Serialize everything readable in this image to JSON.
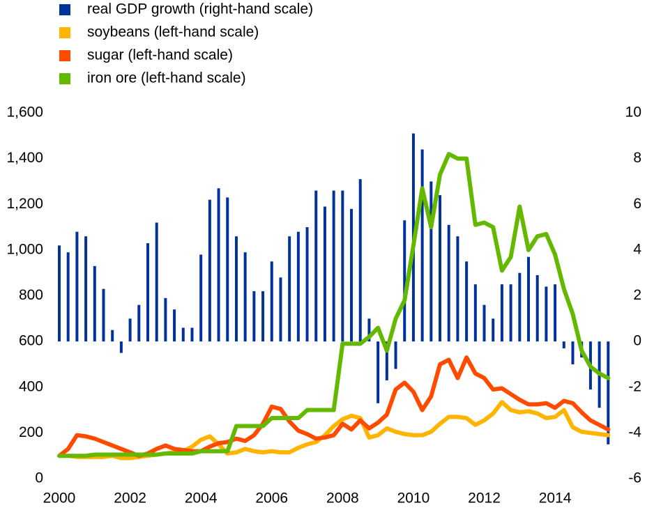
{
  "chart_data": {
    "type": "combo",
    "x": [
      2000,
      2000.25,
      2000.5,
      2000.75,
      2001,
      2001.25,
      2001.5,
      2001.75,
      2002,
      2002.25,
      2002.5,
      2002.75,
      2003,
      2003.25,
      2003.5,
      2003.75,
      2004,
      2004.25,
      2004.5,
      2004.75,
      2005,
      2005.25,
      2005.5,
      2005.75,
      2006,
      2006.25,
      2006.5,
      2006.75,
      2007,
      2007.25,
      2007.5,
      2007.75,
      2008,
      2008.25,
      2008.5,
      2008.75,
      2009,
      2009.25,
      2009.5,
      2009.75,
      2010,
      2010.25,
      2010.5,
      2010.75,
      2011,
      2011.25,
      2011.5,
      2011.75,
      2012,
      2012.25,
      2012.5,
      2012.75,
      2013,
      2013.25,
      2013.5,
      2013.75,
      2014,
      2014.25,
      2014.5,
      2014.75,
      2015,
      2015.25,
      2015.5
    ],
    "series": [
      {
        "name": "real GDP growth (right-hand scale)",
        "type": "bar",
        "axis": "y2",
        "color": "#003299",
        "values": [
          4.2,
          3.9,
          4.8,
          4.6,
          3.3,
          2.3,
          0.5,
          -0.5,
          1.0,
          1.6,
          4.3,
          5.2,
          1.9,
          1.4,
          0.6,
          0.6,
          3.8,
          6.2,
          6.7,
          6.3,
          4.6,
          3.9,
          2.2,
          2.2,
          3.5,
          2.8,
          4.6,
          4.8,
          5.0,
          6.6,
          5.9,
          6.6,
          6.6,
          5.8,
          7.1,
          1.0,
          -2.7,
          -1.7,
          -1.2,
          5.3,
          9.1,
          8.4,
          7.0,
          6.4,
          5.1,
          4.6,
          3.5,
          2.5,
          1.6,
          1.0,
          2.5,
          2.5,
          3.0,
          3.7,
          2.9,
          2.4,
          2.5,
          -0.3,
          -1.0,
          -0.7,
          -2.1,
          -2.9,
          -4.5
        ]
      },
      {
        "name": "soybeans (left-hand scale)",
        "type": "line",
        "color": "#ffb400",
        "values": [
          100,
          100,
          95,
          95,
          95,
          95,
          100,
          90,
          90,
          95,
          100,
          105,
          110,
          115,
          120,
          140,
          170,
          185,
          150,
          110,
          115,
          130,
          120,
          115,
          120,
          115,
          115,
          135,
          150,
          160,
          190,
          230,
          260,
          275,
          265,
          180,
          190,
          220,
          205,
          195,
          190,
          190,
          205,
          240,
          270,
          270,
          265,
          235,
          255,
          285,
          335,
          300,
          290,
          295,
          285,
          265,
          270,
          300,
          225,
          205,
          200,
          195,
          190
        ]
      },
      {
        "name": "sugar (left-hand scale)",
        "type": "line",
        "color": "#ff4b00",
        "values": [
          100,
          130,
          190,
          185,
          175,
          160,
          145,
          130,
          115,
          100,
          110,
          130,
          145,
          130,
          125,
          120,
          120,
          140,
          155,
          160,
          175,
          165,
          190,
          240,
          315,
          305,
          250,
          210,
          195,
          175,
          180,
          190,
          240,
          215,
          255,
          220,
          245,
          280,
          390,
          420,
          380,
          300,
          360,
          500,
          520,
          440,
          530,
          460,
          440,
          390,
          395,
          370,
          345,
          325,
          325,
          330,
          310,
          340,
          330,
          290,
          255,
          235,
          215
        ]
      },
      {
        "name": "iron ore (left-hand scale)",
        "type": "line",
        "color": "#65b800",
        "values": [
          100,
          100,
          100,
          100,
          105,
          105,
          105,
          105,
          105,
          105,
          105,
          105,
          110,
          110,
          110,
          110,
          120,
          120,
          120,
          120,
          230,
          230,
          230,
          230,
          265,
          265,
          265,
          265,
          300,
          300,
          300,
          300,
          590,
          590,
          590,
          620,
          660,
          560,
          700,
          780,
          1020,
          1270,
          1100,
          1330,
          1420,
          1400,
          1400,
          1110,
          1120,
          1100,
          910,
          970,
          1190,
          1000,
          1060,
          1070,
          980,
          830,
          720,
          560,
          490,
          460,
          440
        ]
      }
    ],
    "xlim": [
      2000,
      2015.75
    ],
    "xticks": [
      2000,
      2002,
      2004,
      2006,
      2008,
      2010,
      2012,
      2014
    ],
    "ylim": [
      0,
      1600
    ],
    "yticks": [
      0,
      200,
      400,
      600,
      800,
      {
        "value": 1000,
        "label": "1,000"
      },
      {
        "value": 1200,
        "label": "1,200"
      },
      {
        "value": 1400,
        "label": "1,400"
      },
      {
        "value": 1600,
        "label": "1,600"
      }
    ],
    "y2lim": [
      -6,
      10
    ],
    "y2ticks": [
      -6,
      -4,
      -2,
      0,
      2,
      4,
      6,
      8,
      10
    ],
    "grid": false
  }
}
